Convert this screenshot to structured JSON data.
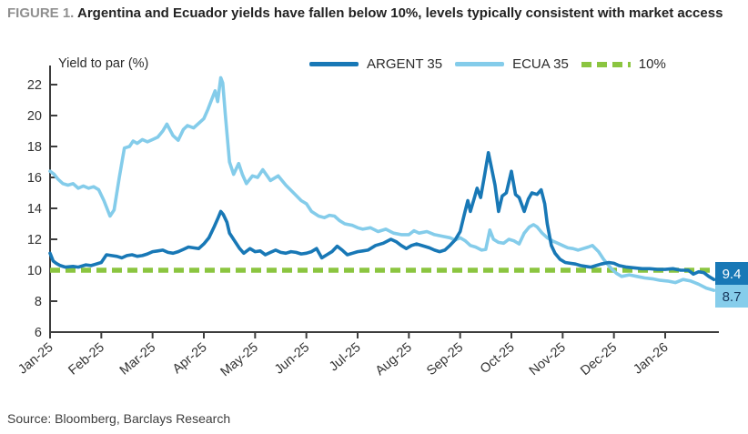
{
  "figure": {
    "label": "FIGURE 1.",
    "title": "Argentina and Ecuador yields have fallen below 10%, levels typically consistent with market access",
    "source": "Source: Bloomberg, Barclays Research"
  },
  "colors": {
    "argent": "#1878B6",
    "ecua": "#84CCEA",
    "green": "#8BC540",
    "axis": "#3d3d3d",
    "tick_text": "#333333",
    "end_label_argent_bg": "#1878B6",
    "end_label_argent_text": "#ffffff",
    "end_label_ecua_bg": "#86CDEB",
    "end_label_ecua_text": "#17375C"
  },
  "legend": [
    {
      "label": "ARGENT 35",
      "color": "#1878B6",
      "dash": false
    },
    {
      "label": "ECUA 35",
      "color": "#84CCEA",
      "dash": false
    },
    {
      "label": "10%",
      "color": "#8BC540",
      "dash": true
    }
  ],
  "chart_data": {
    "type": "line",
    "title": "Argentina and Ecuador yields have fallen below 10%, levels typically consistent with market access",
    "ylabel": "Yield to par (%)",
    "xlabel": "",
    "x_unit": "months since Jan-2025",
    "x_tick_labels": [
      "Jan-25",
      "Feb-25",
      "Mar-25",
      "Apr-25",
      "May-25",
      "Jun-25",
      "Jul-25",
      "Aug-25",
      "Sep-25",
      "Oct-25",
      "Nov-25",
      "Dec-25",
      "Jan-26"
    ],
    "x_tick_positions": [
      0,
      1,
      2,
      3,
      4,
      5,
      6,
      7,
      8,
      9,
      10,
      11,
      12
    ],
    "xlim": [
      0,
      13.05
    ],
    "ylim": [
      6,
      22.8
    ],
    "yticks": [
      6,
      8,
      10,
      12,
      14,
      16,
      18,
      20,
      22
    ],
    "grid": false,
    "legend_position": "top",
    "reference_line": {
      "label": "10%",
      "value": 10,
      "style": "dashed",
      "color": "#8BC540"
    },
    "series": [
      {
        "name": "ARGENT 35",
        "color": "#1878B6",
        "end_label": "9.4",
        "end_value": 9.4,
        "points": [
          [
            0,
            11.1
          ],
          [
            0.06,
            10.6
          ],
          [
            0.12,
            10.45
          ],
          [
            0.2,
            10.3
          ],
          [
            0.3,
            10.2
          ],
          [
            0.45,
            10.25
          ],
          [
            0.55,
            10.2
          ],
          [
            0.7,
            10.35
          ],
          [
            0.8,
            10.3
          ],
          [
            0.9,
            10.4
          ],
          [
            1.0,
            10.5
          ],
          [
            1.1,
            11.0
          ],
          [
            1.2,
            10.95
          ],
          [
            1.3,
            10.9
          ],
          [
            1.4,
            10.8
          ],
          [
            1.5,
            10.95
          ],
          [
            1.6,
            11.0
          ],
          [
            1.7,
            10.9
          ],
          [
            1.8,
            10.95
          ],
          [
            1.9,
            11.05
          ],
          [
            2.0,
            11.2
          ],
          [
            2.1,
            11.25
          ],
          [
            2.2,
            11.3
          ],
          [
            2.3,
            11.15
          ],
          [
            2.4,
            11.1
          ],
          [
            2.5,
            11.2
          ],
          [
            2.6,
            11.35
          ],
          [
            2.7,
            11.5
          ],
          [
            2.8,
            11.45
          ],
          [
            2.9,
            11.4
          ],
          [
            3.0,
            11.7
          ],
          [
            3.1,
            12.1
          ],
          [
            3.2,
            12.8
          ],
          [
            3.28,
            13.4
          ],
          [
            3.33,
            13.8
          ],
          [
            3.38,
            13.6
          ],
          [
            3.45,
            13.1
          ],
          [
            3.5,
            12.4
          ],
          [
            3.6,
            11.9
          ],
          [
            3.7,
            11.4
          ],
          [
            3.78,
            11.1
          ],
          [
            3.9,
            11.4
          ],
          [
            4.0,
            11.2
          ],
          [
            4.1,
            11.25
          ],
          [
            4.2,
            11.0
          ],
          [
            4.3,
            11.15
          ],
          [
            4.4,
            11.3
          ],
          [
            4.5,
            11.15
          ],
          [
            4.6,
            11.1
          ],
          [
            4.7,
            11.2
          ],
          [
            4.8,
            11.15
          ],
          [
            4.9,
            11.05
          ],
          [
            5.0,
            11.1
          ],
          [
            5.1,
            11.2
          ],
          [
            5.2,
            11.4
          ],
          [
            5.3,
            10.8
          ],
          [
            5.4,
            11.0
          ],
          [
            5.5,
            11.2
          ],
          [
            5.6,
            11.55
          ],
          [
            5.7,
            11.3
          ],
          [
            5.8,
            11.0
          ],
          [
            5.9,
            11.1
          ],
          [
            6.0,
            11.2
          ],
          [
            6.1,
            11.25
          ],
          [
            6.2,
            11.3
          ],
          [
            6.35,
            11.6
          ],
          [
            6.5,
            11.75
          ],
          [
            6.65,
            12.0
          ],
          [
            6.75,
            11.85
          ],
          [
            6.85,
            11.6
          ],
          [
            6.95,
            11.4
          ],
          [
            7.05,
            11.6
          ],
          [
            7.15,
            11.7
          ],
          [
            7.3,
            11.55
          ],
          [
            7.4,
            11.45
          ],
          [
            7.5,
            11.3
          ],
          [
            7.6,
            11.2
          ],
          [
            7.7,
            11.3
          ],
          [
            7.8,
            11.6
          ],
          [
            7.9,
            11.95
          ],
          [
            8.0,
            12.5
          ],
          [
            8.08,
            13.6
          ],
          [
            8.15,
            14.5
          ],
          [
            8.2,
            13.8
          ],
          [
            8.28,
            14.7
          ],
          [
            8.33,
            15.3
          ],
          [
            8.4,
            14.7
          ],
          [
            8.48,
            16.2
          ],
          [
            8.55,
            17.6
          ],
          [
            8.6,
            16.8
          ],
          [
            8.68,
            15.5
          ],
          [
            8.75,
            13.8
          ],
          [
            8.82,
            14.8
          ],
          [
            8.9,
            15.0
          ],
          [
            9.0,
            16.4
          ],
          [
            9.08,
            14.9
          ],
          [
            9.15,
            14.7
          ],
          [
            9.25,
            13.8
          ],
          [
            9.33,
            14.6
          ],
          [
            9.4,
            15.0
          ],
          [
            9.5,
            14.9
          ],
          [
            9.58,
            15.2
          ],
          [
            9.65,
            14.3
          ],
          [
            9.7,
            13.0
          ],
          [
            9.78,
            11.6
          ],
          [
            9.85,
            11.1
          ],
          [
            9.95,
            10.7
          ],
          [
            10.05,
            10.5
          ],
          [
            10.15,
            10.45
          ],
          [
            10.25,
            10.4
          ],
          [
            10.35,
            10.3
          ],
          [
            10.45,
            10.25
          ],
          [
            10.55,
            10.2
          ],
          [
            10.65,
            10.3
          ],
          [
            10.75,
            10.4
          ],
          [
            10.9,
            10.5
          ],
          [
            11.0,
            10.45
          ],
          [
            11.1,
            10.3
          ],
          [
            11.25,
            10.2
          ],
          [
            11.4,
            10.15
          ],
          [
            11.55,
            10.1
          ],
          [
            11.7,
            10.1
          ],
          [
            11.85,
            10.05
          ],
          [
            12.0,
            10.05
          ],
          [
            12.15,
            10.1
          ],
          [
            12.3,
            10.0
          ],
          [
            12.45,
            10.0
          ],
          [
            12.55,
            9.75
          ],
          [
            12.65,
            9.9
          ],
          [
            12.75,
            9.85
          ],
          [
            12.85,
            9.6
          ],
          [
            12.95,
            9.4
          ]
        ]
      },
      {
        "name": "ECUA 35",
        "color": "#84CCEA",
        "end_label": "8.7",
        "end_value": 8.7,
        "points": [
          [
            0,
            16.4
          ],
          [
            0.08,
            16.2
          ],
          [
            0.15,
            15.9
          ],
          [
            0.25,
            15.6
          ],
          [
            0.35,
            15.5
          ],
          [
            0.45,
            15.6
          ],
          [
            0.55,
            15.3
          ],
          [
            0.65,
            15.45
          ],
          [
            0.75,
            15.3
          ],
          [
            0.85,
            15.4
          ],
          [
            0.95,
            15.2
          ],
          [
            1.05,
            14.5
          ],
          [
            1.17,
            13.5
          ],
          [
            1.25,
            13.9
          ],
          [
            1.35,
            16.0
          ],
          [
            1.45,
            17.9
          ],
          [
            1.55,
            18.0
          ],
          [
            1.62,
            18.35
          ],
          [
            1.7,
            18.2
          ],
          [
            1.8,
            18.45
          ],
          [
            1.9,
            18.3
          ],
          [
            2.0,
            18.45
          ],
          [
            2.1,
            18.6
          ],
          [
            2.2,
            19.0
          ],
          [
            2.28,
            19.45
          ],
          [
            2.4,
            18.7
          ],
          [
            2.5,
            18.4
          ],
          [
            2.6,
            19.1
          ],
          [
            2.68,
            19.35
          ],
          [
            2.8,
            19.2
          ],
          [
            2.9,
            19.5
          ],
          [
            3.0,
            19.8
          ],
          [
            3.08,
            20.4
          ],
          [
            3.15,
            21.0
          ],
          [
            3.22,
            21.6
          ],
          [
            3.27,
            20.9
          ],
          [
            3.33,
            22.45
          ],
          [
            3.37,
            22.1
          ],
          [
            3.42,
            20.0
          ],
          [
            3.5,
            17.0
          ],
          [
            3.58,
            16.2
          ],
          [
            3.68,
            16.9
          ],
          [
            3.75,
            16.2
          ],
          [
            3.83,
            15.6
          ],
          [
            3.95,
            16.1
          ],
          [
            4.05,
            16.0
          ],
          [
            4.15,
            16.5
          ],
          [
            4.3,
            15.8
          ],
          [
            4.45,
            16.1
          ],
          [
            4.6,
            15.5
          ],
          [
            4.75,
            15.0
          ],
          [
            4.9,
            14.5
          ],
          [
            5.0,
            14.3
          ],
          [
            5.1,
            13.8
          ],
          [
            5.24,
            13.5
          ],
          [
            5.35,
            13.4
          ],
          [
            5.45,
            13.55
          ],
          [
            5.55,
            13.5
          ],
          [
            5.65,
            13.2
          ],
          [
            5.75,
            13.0
          ],
          [
            5.9,
            12.9
          ],
          [
            6.0,
            12.75
          ],
          [
            6.1,
            12.65
          ],
          [
            6.25,
            12.75
          ],
          [
            6.4,
            12.5
          ],
          [
            6.55,
            12.65
          ],
          [
            6.7,
            12.4
          ],
          [
            6.85,
            12.3
          ],
          [
            7.0,
            12.3
          ],
          [
            7.1,
            12.55
          ],
          [
            7.2,
            12.4
          ],
          [
            7.35,
            12.5
          ],
          [
            7.5,
            12.3
          ],
          [
            7.65,
            12.2
          ],
          [
            7.8,
            12.1
          ],
          [
            7.9,
            11.95
          ],
          [
            8.0,
            12.1
          ],
          [
            8.1,
            11.9
          ],
          [
            8.2,
            11.6
          ],
          [
            8.3,
            11.5
          ],
          [
            8.42,
            11.3
          ],
          [
            8.5,
            11.35
          ],
          [
            8.58,
            12.6
          ],
          [
            8.65,
            12.0
          ],
          [
            8.75,
            11.8
          ],
          [
            8.85,
            11.75
          ],
          [
            8.95,
            12.0
          ],
          [
            9.05,
            11.9
          ],
          [
            9.15,
            11.7
          ],
          [
            9.25,
            12.4
          ],
          [
            9.35,
            12.8
          ],
          [
            9.43,
            12.95
          ],
          [
            9.5,
            12.8
          ],
          [
            9.6,
            12.4
          ],
          [
            9.7,
            12.1
          ],
          [
            9.8,
            11.9
          ],
          [
            9.9,
            11.75
          ],
          [
            10.0,
            11.6
          ],
          [
            10.1,
            11.45
          ],
          [
            10.2,
            11.4
          ],
          [
            10.3,
            11.3
          ],
          [
            10.4,
            11.4
          ],
          [
            10.5,
            11.5
          ],
          [
            10.58,
            11.6
          ],
          [
            10.7,
            11.2
          ],
          [
            10.8,
            10.7
          ],
          [
            10.95,
            10.1
          ],
          [
            11.05,
            9.8
          ],
          [
            11.15,
            9.6
          ],
          [
            11.3,
            9.7
          ],
          [
            11.45,
            9.6
          ],
          [
            11.6,
            9.5
          ],
          [
            11.75,
            9.45
          ],
          [
            11.9,
            9.35
          ],
          [
            12.05,
            9.3
          ],
          [
            12.2,
            9.2
          ],
          [
            12.35,
            9.4
          ],
          [
            12.5,
            9.3
          ],
          [
            12.65,
            9.1
          ],
          [
            12.8,
            8.85
          ],
          [
            12.95,
            8.7
          ]
        ]
      }
    ]
  }
}
